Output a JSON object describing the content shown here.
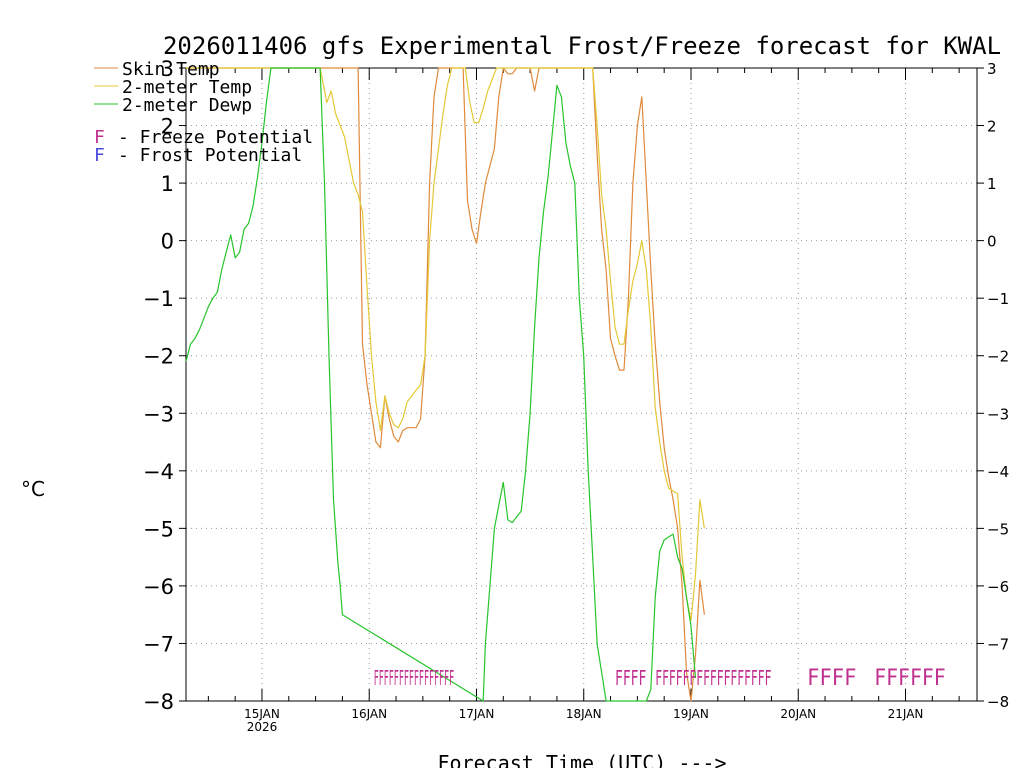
{
  "chart_data": {
    "type": "line",
    "title": "2026011406 gfs Experimental Frost/Freeze forecast for KWAL",
    "xlabel": "Forecast Time (UTC) --->",
    "ylabel": "°C",
    "ylim": [
      -8,
      3
    ],
    "yticks": [
      -8,
      -7,
      -6,
      -5,
      -4,
      -3,
      -2,
      -1,
      0,
      1,
      2,
      3
    ],
    "xlim": [
      -17,
      160
    ],
    "x_unit": "hours after 2026011500 UTC",
    "xticks": [
      {
        "x": 0,
        "label": "15JAN",
        "sub": "2026"
      },
      {
        "x": 24,
        "label": "16JAN"
      },
      {
        "x": 48,
        "label": "17JAN"
      },
      {
        "x": 72,
        "label": "18JAN"
      },
      {
        "x": 96,
        "label": "19JAN"
      },
      {
        "x": 120,
        "label": "20JAN"
      },
      {
        "x": 144,
        "label": "21JAN"
      }
    ],
    "legend": {
      "position": "top-left",
      "entries": [
        "Skin Temp",
        "2-meter Temp",
        "2-meter Dewp"
      ],
      "potential_entries": [
        {
          "letter": "F",
          "text": "- Freeze Potential",
          "color": "#c0308f"
        },
        {
          "letter": "F",
          "text": "- Frost Potential",
          "color": "#4a4adc"
        }
      ]
    },
    "series": [
      {
        "name": "Skin Temp",
        "color": "#e08a3c",
        "x": [
          -17,
          21.5,
          22.5,
          23.5,
          24.5,
          25.5,
          26.5,
          27.5,
          28.5,
          29.5,
          30.5,
          31.5,
          32.5,
          33.5,
          34.5,
          35.5,
          36.5,
          37.5,
          38.5,
          39.5,
          40.5,
          43,
          45,
          46,
          47,
          48,
          49,
          50,
          51,
          52,
          53,
          54,
          55,
          56,
          57,
          58,
          59,
          60,
          61,
          62,
          70,
          74,
          75,
          76,
          77,
          78,
          79,
          80,
          81,
          82,
          83,
          84,
          85,
          86,
          87,
          88,
          89,
          90,
          91,
          92,
          93,
          94,
          95,
          96,
          97,
          98,
          99
        ],
        "y": [
          3,
          3,
          -1.8,
          -2.5,
          -3.0,
          -3.5,
          -3.6,
          -2.7,
          -3.1,
          -3.4,
          -3.5,
          -3.3,
          -3.25,
          -3.25,
          -3.25,
          -3.1,
          -2.0,
          1.0,
          2.5,
          3.0,
          3.0,
          3.0,
          3.0,
          0.7,
          0.2,
          -0.05,
          0.5,
          1.0,
          1.3,
          1.6,
          2.5,
          3.0,
          2.9,
          2.9,
          3.0,
          3.0,
          3.0,
          3.0,
          2.6,
          3.0,
          3.0,
          3.0,
          1.5,
          0.2,
          -0.5,
          -1.7,
          -2.0,
          -2.25,
          -2.25,
          -1.0,
          1.0,
          2.0,
          2.5,
          1.0,
          -0.5,
          -1.8,
          -2.8,
          -3.6,
          -4.1,
          -4.5,
          -5.0,
          -6.0,
          -7.5,
          -8.0,
          -7.2,
          -5.9,
          -6.5
        ]
      },
      {
        "name": "2-meter Temp",
        "color": "#e4c936",
        "x": [
          -17,
          13,
          14.5,
          15.5,
          16.5,
          17.5,
          18.5,
          19.5,
          20.5,
          21.5,
          22.5,
          23.5,
          24.5,
          25.5,
          26.5,
          27.5,
          28.5,
          29.5,
          30.5,
          31.5,
          32.5,
          33.5,
          34.5,
          35.5,
          36.5,
          37.5,
          38.5,
          39.5,
          40.5,
          41.5,
          42.5,
          43.5,
          44.5,
          45.5,
          46.5,
          47.5,
          48.5,
          49.5,
          50.5,
          51.5,
          52.5,
          53.5,
          54.5,
          56,
          60,
          62,
          70,
          74,
          75,
          76,
          77,
          78,
          79,
          80,
          81,
          82,
          83,
          84,
          85,
          86,
          87,
          88,
          89,
          90,
          91,
          92,
          93,
          94,
          95,
          96,
          97,
          98,
          99
        ],
        "y": [
          3,
          3,
          2.4,
          2.6,
          2.2,
          2.0,
          1.8,
          1.4,
          1.0,
          0.8,
          0.5,
          -0.8,
          -2.0,
          -2.8,
          -3.3,
          -2.7,
          -3.0,
          -3.2,
          -3.25,
          -3.1,
          -2.8,
          -2.7,
          -2.6,
          -2.5,
          -2.0,
          0.0,
          1.0,
          1.6,
          2.2,
          2.7,
          3.0,
          3.0,
          3.0,
          3.0,
          2.4,
          2.05,
          2.05,
          2.3,
          2.6,
          2.8,
          3.0,
          3.0,
          3.0,
          3.0,
          3.0,
          3.0,
          3.0,
          3.0,
          2.0,
          0.8,
          0.2,
          -0.7,
          -1.5,
          -1.8,
          -1.8,
          -1.2,
          -0.7,
          -0.4,
          0.0,
          -0.5,
          -1.5,
          -2.9,
          -3.5,
          -4.0,
          -4.3,
          -4.35,
          -4.4,
          -5.5,
          -6.2,
          -6.6,
          -5.8,
          -4.5,
          -5.0
        ]
      },
      {
        "name": "2-meter Dewp",
        "color": "#27c42c",
        "x": [
          -17,
          -16,
          -15,
          -14,
          -13,
          -12,
          -11,
          -10,
          -9,
          -8,
          -7,
          -6,
          -5,
          -4,
          -3,
          -2,
          -1,
          0,
          1,
          2,
          3,
          4,
          5,
          5.5,
          6.5,
          7,
          12.5,
          13,
          14,
          15,
          16,
          17,
          17.5,
          18,
          49.5,
          50,
          51,
          52,
          53,
          54,
          55,
          56,
          57,
          58,
          59,
          60,
          61,
          62,
          63,
          64,
          65,
          66,
          67,
          68,
          69,
          70,
          71,
          72,
          73,
          74,
          75,
          76,
          77,
          78,
          79,
          80,
          81,
          82,
          83,
          84,
          85,
          86,
          87,
          88,
          89,
          90,
          91,
          92,
          93,
          94,
          95,
          96,
          97
        ],
        "y": [
          -2.1,
          -1.8,
          -1.7,
          -1.55,
          -1.35,
          -1.15,
          -1.0,
          -0.9,
          -0.5,
          -0.2,
          0.1,
          -0.3,
          -0.2,
          0.2,
          0.3,
          0.6,
          1.1,
          1.7,
          2.4,
          3.0,
          3.0,
          3.0,
          3.0,
          3.0,
          3.0,
          3.0,
          3.0,
          3.0,
          1.0,
          -2.0,
          -4.5,
          -5.6,
          -6.0,
          -6.5,
          -8.0,
          -7.0,
          -6.0,
          -5.0,
          -4.6,
          -4.2,
          -4.85,
          -4.9,
          -4.8,
          -4.7,
          -4.0,
          -3.0,
          -1.5,
          -0.3,
          0.5,
          1.1,
          1.9,
          2.7,
          2.5,
          1.7,
          1.3,
          1.0,
          -1.0,
          -2.0,
          -4.0,
          -5.5,
          -7.0,
          -7.5,
          -8.0,
          -8.0,
          -8.0,
          -8.0,
          -8.0,
          -8.0,
          -8.0,
          -8.0,
          -8.0,
          -8.0,
          -7.8,
          -6.2,
          -5.4,
          -5.2,
          -5.15,
          -5.1,
          -5.5,
          -5.7,
          -6.2,
          -6.7,
          -7.6
        ]
      }
    ],
    "freeze_marks": [
      {
        "text": "FFFFFFFFFFFFFFFF",
        "x_start": 25,
        "x_end": 43,
        "color": "#c0308f",
        "dense": true
      },
      {
        "text": "FFFF",
        "x_start": 79,
        "x_end": 86,
        "color": "#c0308f",
        "dense": true
      },
      {
        "text": "FFFFFFFFFFFFFFFFF",
        "x_start": 88,
        "x_end": 114,
        "color": "#c0308f",
        "dense": true
      },
      {
        "text": "FFFF",
        "x_start": 122,
        "x_end": 133,
        "color": "#c0308f",
        "dense": false
      },
      {
        "text": "FFFFFF",
        "x_start": 137,
        "x_end": 153,
        "color": "#c0308f",
        "dense": false
      }
    ]
  }
}
